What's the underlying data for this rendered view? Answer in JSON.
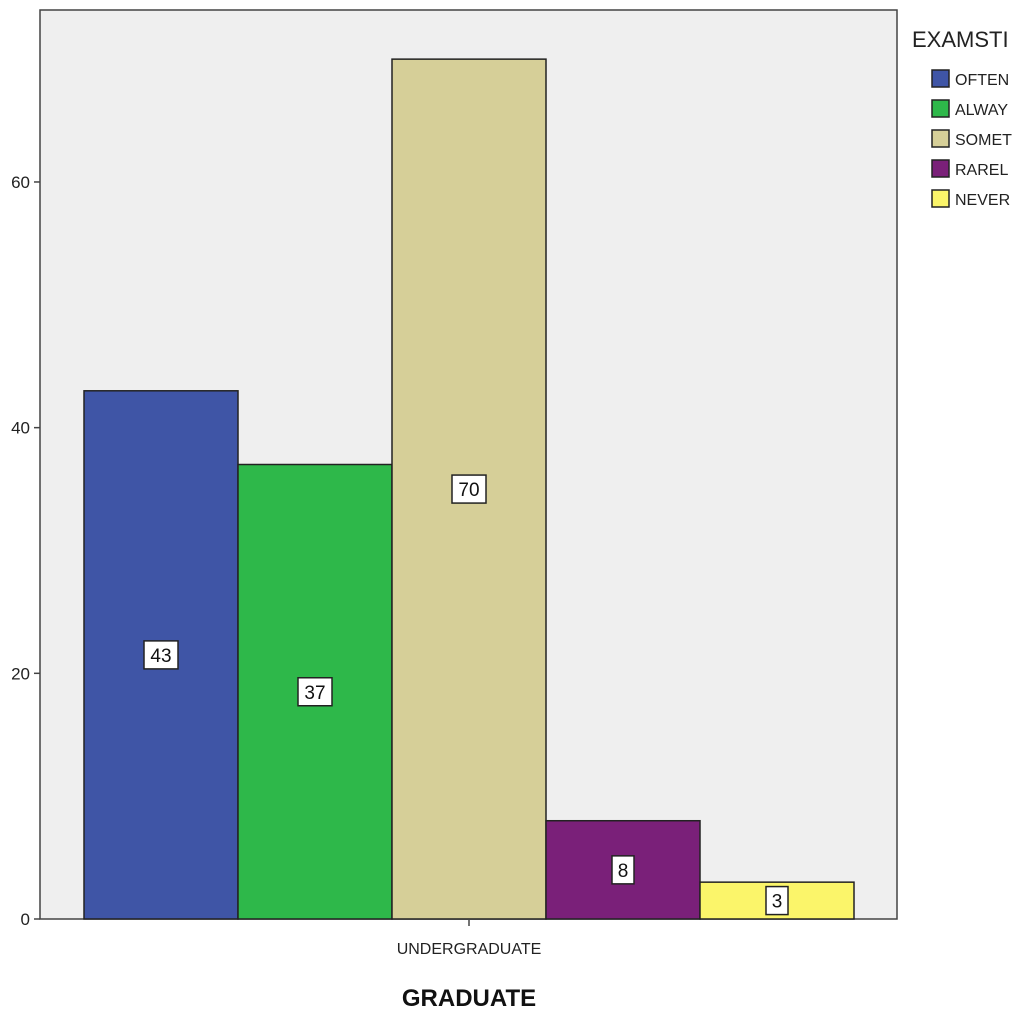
{
  "chart_data": {
    "type": "bar",
    "categories": [
      "UNDERGRADUATE"
    ],
    "xlabel": "GRADUATE",
    "ylabel": "",
    "ylim": [
      0,
      74
    ],
    "yticks": [
      0,
      20,
      40,
      60
    ],
    "ytick_labels": [
      "0",
      "20",
      "40",
      "60"
    ],
    "grid": false,
    "legend_title": "EXAMSTI",
    "legend_position": "right",
    "series": [
      {
        "name": "OFTEN",
        "values": [
          43
        ],
        "color": "#3f55a6",
        "data_label": "43"
      },
      {
        "name": "ALWAY",
        "values": [
          37
        ],
        "color": "#2eb84a",
        "data_label": "37"
      },
      {
        "name": "SOMET",
        "values": [
          70
        ],
        "color": "#d6cf98",
        "data_label": "70"
      },
      {
        "name": "RAREL",
        "values": [
          8
        ],
        "color": "#7a2079",
        "data_label": "8"
      },
      {
        "name": "NEVER",
        "values": [
          3
        ],
        "color": "#fbf56a",
        "data_label": "3"
      }
    ],
    "plot_background": "#efefef"
  }
}
